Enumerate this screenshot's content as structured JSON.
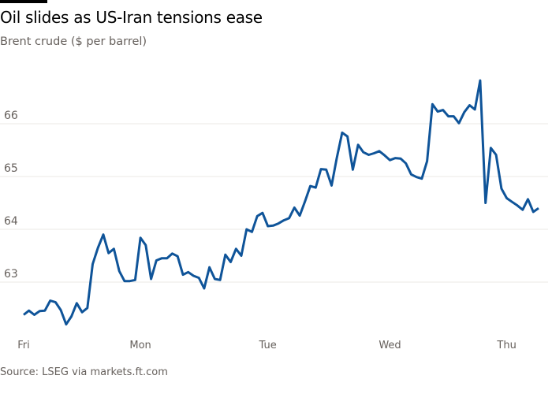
{
  "title": "Oil slides as US-Iran tensions ease",
  "subtitle": "Brent crude ($ per barrel)",
  "source": "Source: LSEG via markets.ft.com",
  "colors": {
    "line": "#0f5499",
    "grid": "#ebe8e4",
    "text": "#66605c",
    "topbar": "#000000"
  },
  "chart_data": {
    "type": "line",
    "title": "Oil slides as US-Iran tensions ease",
    "ylabel": "Brent crude ($ per barrel)",
    "ylim": [
      62.1,
      67.0
    ],
    "yticks": [
      63,
      64,
      65,
      66
    ],
    "grid": true,
    "xticks": [
      {
        "label": "Fri",
        "index": 0
      },
      {
        "label": "Mon",
        "index": 22
      },
      {
        "label": "Tue",
        "index": 46
      },
      {
        "label": "Wed",
        "index": 69
      },
      {
        "label": "Thu",
        "index": 91
      }
    ],
    "series": [
      {
        "values": [
          62.38,
          62.46,
          62.38,
          62.45,
          62.46,
          62.65,
          62.62,
          62.47,
          62.2,
          62.35,
          62.6,
          62.43,
          62.51,
          63.34,
          63.65,
          63.9,
          63.55,
          63.63,
          63.21,
          63.02,
          63.02,
          63.04,
          63.84,
          63.7,
          63.06,
          63.41,
          63.45,
          63.45,
          63.54,
          63.49,
          63.14,
          63.19,
          63.12,
          63.08,
          62.88,
          63.28,
          63.06,
          63.04,
          63.52,
          63.38,
          63.63,
          63.5,
          64.0,
          63.95,
          64.25,
          64.31,
          64.06,
          64.07,
          64.11,
          64.17,
          64.21,
          64.41,
          64.26,
          64.53,
          64.82,
          64.79,
          65.14,
          65.13,
          64.83,
          65.36,
          65.83,
          65.76,
          65.13,
          65.6,
          65.46,
          65.41,
          65.44,
          65.48,
          65.4,
          65.31,
          65.35,
          65.34,
          65.25,
          65.04,
          64.99,
          64.96,
          65.29,
          66.37,
          66.23,
          66.26,
          66.14,
          66.14,
          66.01,
          66.22,
          66.35,
          66.27,
          66.82,
          64.5,
          65.54,
          65.41,
          64.77,
          64.59,
          64.52,
          64.45,
          64.37,
          64.57,
          64.33,
          64.4
        ]
      }
    ]
  }
}
